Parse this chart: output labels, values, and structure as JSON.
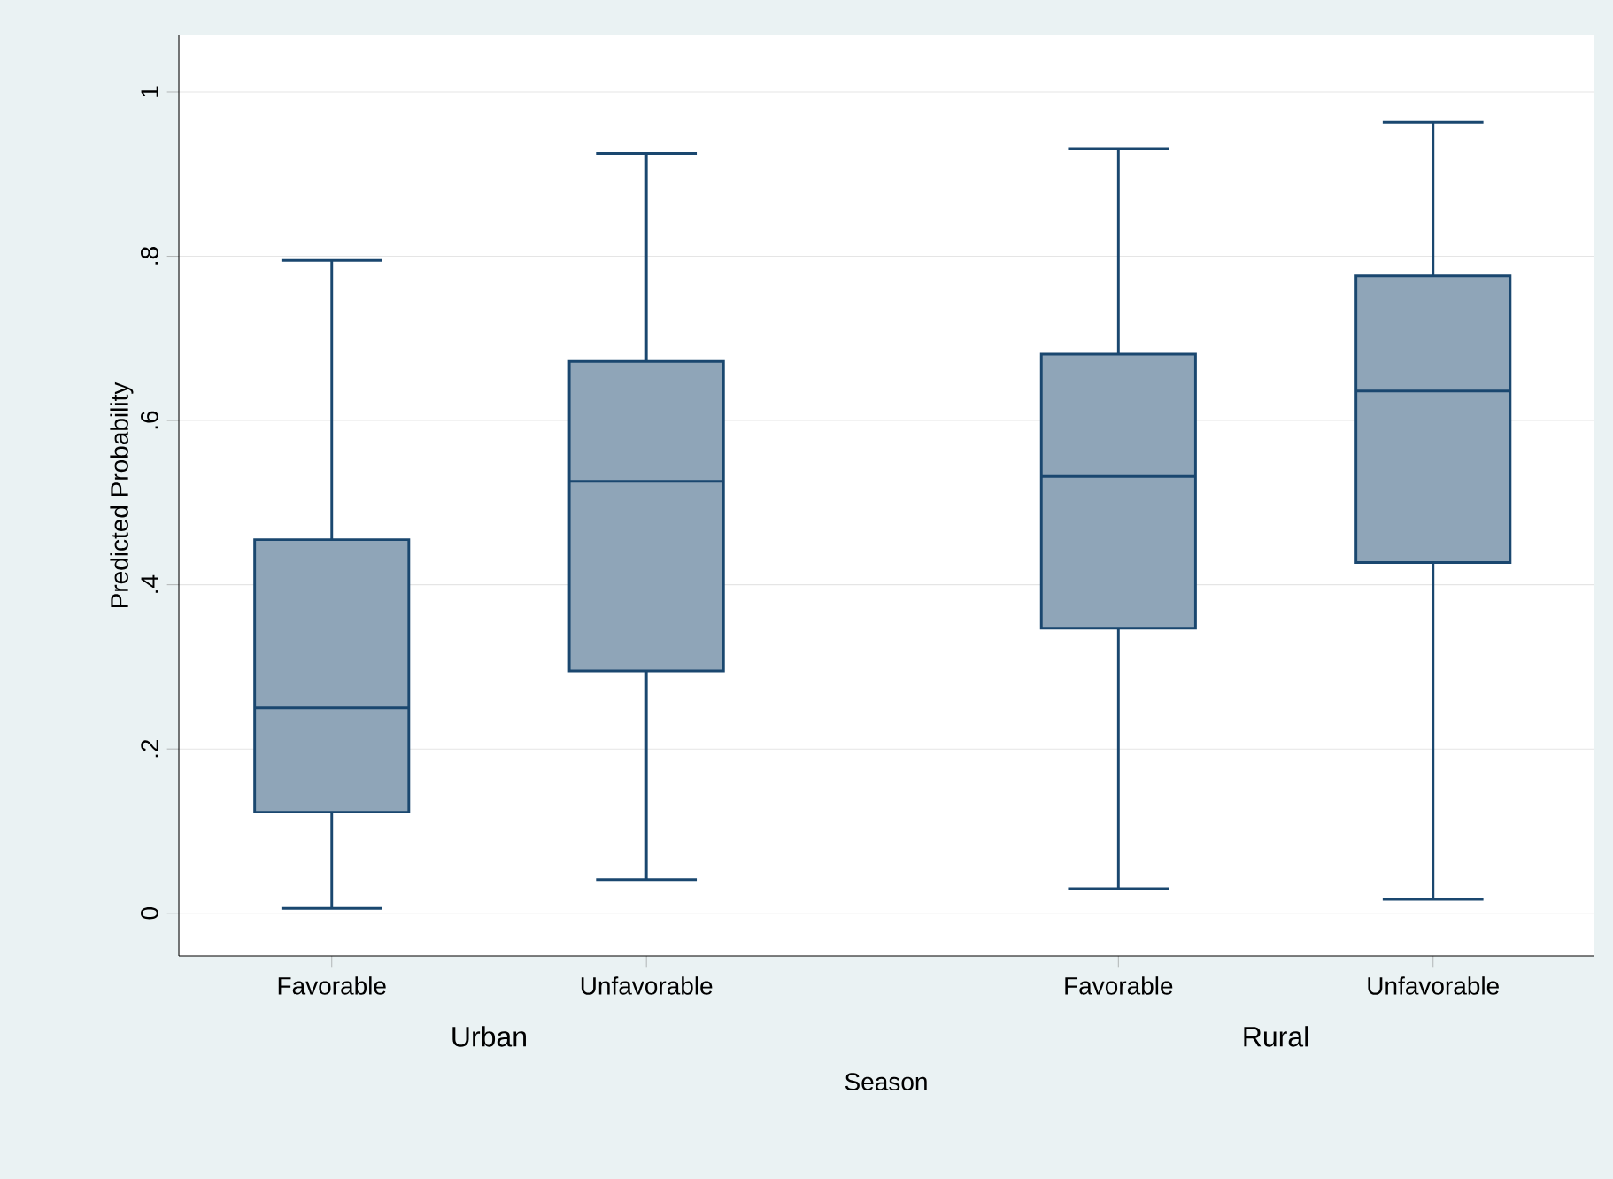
{
  "chart_data": {
    "type": "box",
    "xlabel": "Season",
    "ylabel": "Predicted Probability",
    "categories": [
      "Favorable",
      "Unfavorable",
      "Favorable",
      "Unfavorable"
    ],
    "annotations": [
      "Urban",
      "Rural"
    ],
    "color": "#8fa5b8",
    "boxes": [
      {
        "low": 0.006,
        "q1": 0.123,
        "median": 0.25,
        "q3": 0.455,
        "high": 0.795
      },
      {
        "low": 0.041,
        "q1": 0.295,
        "median": 0.526,
        "q3": 0.672,
        "high": 0.925
      },
      {
        "low": 0.03,
        "q1": 0.347,
        "median": 0.532,
        "q3": 0.681,
        "high": 0.931
      },
      {
        "low": 0.017,
        "q1": 0.427,
        "median": 0.636,
        "q3": 0.776,
        "high": 0.963
      }
    ],
    "ylim": [
      -0.052,
      1.069
    ],
    "yticks": [
      0,
      {
        "value": 0.2,
        "label": ".2"
      },
      {
        "value": 0.4,
        "label": ".4"
      },
      {
        "value": 0.6,
        "label": ".6"
      },
      {
        "value": 0.8,
        "label": ".8"
      },
      1
    ],
    "grid": "y"
  }
}
